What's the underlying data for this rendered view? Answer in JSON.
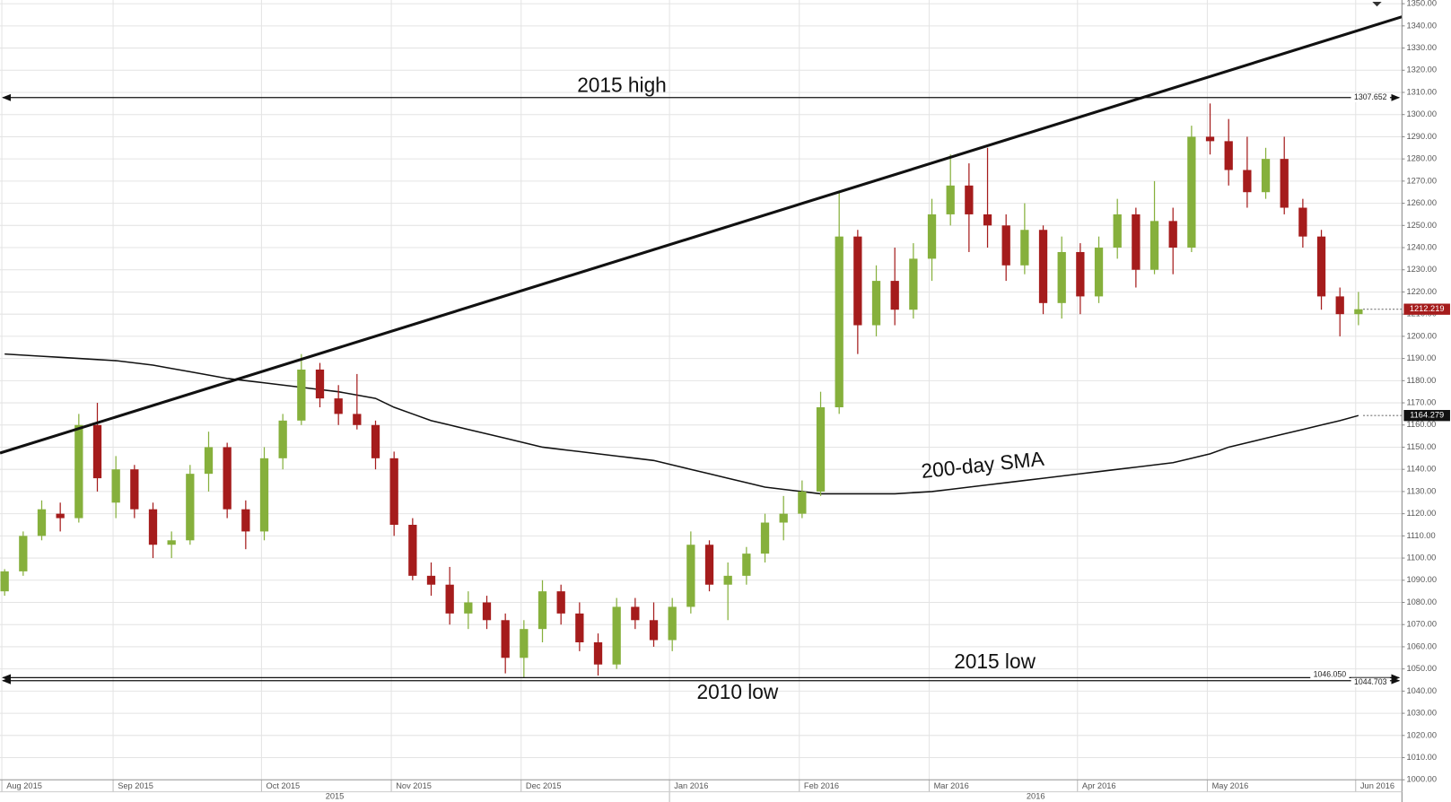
{
  "chart_data": {
    "type": "candlestick",
    "categories": [
      "Aug 2015",
      null,
      null,
      null,
      null,
      null,
      "Sep 2015",
      null,
      null,
      null,
      null,
      null,
      null,
      null,
      "Oct 2015",
      null,
      null,
      null,
      null,
      null,
      null,
      "Nov 2015",
      null,
      null,
      null,
      null,
      null,
      null,
      "Dec 2015",
      null,
      null,
      null,
      null,
      null,
      null,
      null,
      "Jan 2016",
      null,
      null,
      null,
      null,
      null,
      null,
      "Feb 2016",
      null,
      null,
      null,
      null,
      null,
      null,
      "Mar 2016",
      null,
      null,
      null,
      null,
      null,
      null,
      null,
      "Apr 2016",
      null,
      null,
      null,
      null,
      null,
      null,
      "May 2016",
      null,
      null,
      null,
      null,
      null,
      null,
      null,
      "Jun 2016"
    ],
    "year_labels": [
      "2015",
      "2016"
    ],
    "ohlc": [
      [
        1085,
        1095,
        1083,
        1094
      ],
      [
        1094,
        1112,
        1092,
        1110
      ],
      [
        1110,
        1126,
        1108,
        1122
      ],
      [
        1120,
        1125,
        1112,
        1118
      ],
      [
        1118,
        1165,
        1116,
        1160
      ],
      [
        1160,
        1170,
        1130,
        1136
      ],
      [
        1125,
        1146,
        1118,
        1140
      ],
      [
        1140,
        1142,
        1118,
        1122
      ],
      [
        1122,
        1125,
        1100,
        1106
      ],
      [
        1106,
        1112,
        1100,
        1108
      ],
      [
        1108,
        1142,
        1106,
        1138
      ],
      [
        1138,
        1157,
        1130,
        1150
      ],
      [
        1150,
        1152,
        1118,
        1122
      ],
      [
        1122,
        1126,
        1104,
        1112
      ],
      [
        1112,
        1150,
        1108,
        1145
      ],
      [
        1145,
        1165,
        1140,
        1162
      ],
      [
        1162,
        1192,
        1160,
        1185
      ],
      [
        1185,
        1188,
        1168,
        1172
      ],
      [
        1172,
        1178,
        1160,
        1165
      ],
      [
        1165,
        1183,
        1158,
        1160
      ],
      [
        1160,
        1162,
        1140,
        1145
      ],
      [
        1145,
        1148,
        1110,
        1115
      ],
      [
        1115,
        1118,
        1090,
        1092
      ],
      [
        1092,
        1098,
        1083,
        1088
      ],
      [
        1088,
        1096,
        1070,
        1075
      ],
      [
        1075,
        1085,
        1068,
        1080
      ],
      [
        1080,
        1083,
        1068,
        1072
      ],
      [
        1072,
        1075,
        1048,
        1055
      ],
      [
        1055,
        1072,
        1046,
        1068
      ],
      [
        1068,
        1090,
        1062,
        1085
      ],
      [
        1085,
        1088,
        1070,
        1075
      ],
      [
        1075,
        1080,
        1058,
        1062
      ],
      [
        1062,
        1066,
        1047,
        1052
      ],
      [
        1052,
        1082,
        1050,
        1078
      ],
      [
        1078,
        1082,
        1068,
        1072
      ],
      [
        1072,
        1080,
        1060,
        1063
      ],
      [
        1063,
        1082,
        1058,
        1078
      ],
      [
        1078,
        1112,
        1075,
        1106
      ],
      [
        1106,
        1108,
        1085,
        1088
      ],
      [
        1088,
        1098,
        1072,
        1092
      ],
      [
        1092,
        1105,
        1088,
        1102
      ],
      [
        1102,
        1120,
        1098,
        1116
      ],
      [
        1116,
        1128,
        1108,
        1120
      ],
      [
        1120,
        1135,
        1118,
        1130
      ],
      [
        1130,
        1175,
        1128,
        1168
      ],
      [
        1168,
        1265,
        1165,
        1245
      ],
      [
        1245,
        1248,
        1192,
        1205
      ],
      [
        1205,
        1232,
        1200,
        1225
      ],
      [
        1225,
        1240,
        1205,
        1212
      ],
      [
        1212,
        1242,
        1208,
        1235
      ],
      [
        1235,
        1262,
        1225,
        1255
      ],
      [
        1255,
        1282,
        1250,
        1268
      ],
      [
        1268,
        1278,
        1238,
        1255
      ],
      [
        1255,
        1285,
        1240,
        1250
      ],
      [
        1250,
        1255,
        1225,
        1232
      ],
      [
        1232,
        1260,
        1228,
        1248
      ],
      [
        1248,
        1250,
        1210,
        1215
      ],
      [
        1215,
        1245,
        1208,
        1238
      ],
      [
        1238,
        1242,
        1210,
        1218
      ],
      [
        1218,
        1245,
        1215,
        1240
      ],
      [
        1240,
        1262,
        1235,
        1255
      ],
      [
        1255,
        1258,
        1222,
        1230
      ],
      [
        1230,
        1270,
        1228,
        1252
      ],
      [
        1252,
        1258,
        1228,
        1240
      ],
      [
        1240,
        1295,
        1238,
        1290
      ],
      [
        1290,
        1305,
        1282,
        1288
      ],
      [
        1288,
        1298,
        1268,
        1275
      ],
      [
        1275,
        1290,
        1258,
        1265
      ],
      [
        1265,
        1285,
        1262,
        1280
      ],
      [
        1280,
        1290,
        1255,
        1258
      ],
      [
        1258,
        1262,
        1240,
        1245
      ],
      [
        1245,
        1248,
        1212,
        1218
      ],
      [
        1218,
        1222,
        1200,
        1210
      ],
      [
        1210,
        1220,
        1205,
        1212.219
      ]
    ],
    "up_color": "#86b03c",
    "down_color": "#a51c1c",
    "sma": {
      "name": "200-day SMA",
      "color": "#111111",
      "values": [
        1192,
        1191.5,
        1191,
        1190.5,
        1190,
        1189.5,
        1189,
        1188,
        1187,
        1185.5,
        1184,
        1182.5,
        1181,
        1180,
        1179,
        1178,
        1177,
        1176,
        1175,
        1173.5,
        1172,
        1168,
        1165,
        1162,
        1160,
        1158,
        1156,
        1154,
        1152,
        1150,
        1149,
        1148,
        1147,
        1146,
        1145,
        1144,
        1142,
        1140,
        1138,
        1136,
        1134,
        1132,
        1131,
        1130,
        1129,
        1129,
        1129,
        1129,
        1129,
        1129.5,
        1130,
        1131,
        1132,
        1133,
        1134,
        1135,
        1136,
        1137,
        1138,
        1139,
        1140,
        1141,
        1142,
        1143,
        1145,
        1147,
        1150,
        1152,
        1154,
        1156,
        1158,
        1160,
        1162,
        1164.279
      ]
    },
    "trendline": [
      1148,
      1338
    ],
    "levels": [
      {
        "name": "2015 high",
        "value": 1307.652
      },
      {
        "name": "2015 low",
        "value": 1046.05,
        "label": "1046.050"
      },
      {
        "name": "2010 low",
        "value": 1044.703
      }
    ],
    "ylim": [
      1000,
      1350
    ],
    "yticks": [
      {
        "value": 1000,
        "label": "1000.00"
      },
      {
        "value": 1010,
        "label": "1010.00"
      },
      {
        "value": 1020,
        "label": "1020.00"
      },
      {
        "value": 1030,
        "label": "1030.00"
      },
      {
        "value": 1040,
        "label": "1040.00"
      },
      {
        "value": 1050,
        "label": "1050.00"
      },
      {
        "value": 1060,
        "label": "1060.00"
      },
      {
        "value": 1070,
        "label": "1070.00"
      },
      {
        "value": 1080,
        "label": "1080.00"
      },
      {
        "value": 1090,
        "label": "1090.00"
      },
      {
        "value": 1100,
        "label": "1100.00"
      },
      {
        "value": 1110,
        "label": "1110.00"
      },
      {
        "value": 1120,
        "label": "1120.00"
      },
      {
        "value": 1130,
        "label": "1130.00"
      },
      {
        "value": 1140,
        "label": "1140.00"
      },
      {
        "value": 1150,
        "label": "1150.00"
      },
      {
        "value": 1160,
        "label": "1160.00"
      },
      {
        "value": 1170,
        "label": "1170.00"
      },
      {
        "value": 1180,
        "label": "1180.00"
      },
      {
        "value": 1190,
        "label": "1190.00"
      },
      {
        "value": 1200,
        "label": "1200.00"
      },
      {
        "value": 1210,
        "label": "1210.00"
      },
      {
        "value": 1220,
        "label": "1220.00"
      },
      {
        "value": 1230,
        "label": "1230.00"
      },
      {
        "value": 1240,
        "label": "1240.00"
      },
      {
        "value": 1250,
        "label": "1250.00"
      },
      {
        "value": 1260,
        "label": "1260.00"
      },
      {
        "value": 1270,
        "label": "1270.00"
      },
      {
        "value": 1280,
        "label": "1280.00"
      },
      {
        "value": 1290,
        "label": "1290.00"
      },
      {
        "value": 1300,
        "label": "1300.00"
      },
      {
        "value": 1310,
        "label": "1310.00"
      },
      {
        "value": 1320,
        "label": "1320.00"
      },
      {
        "value": 1330,
        "label": "1330.00"
      },
      {
        "value": 1340,
        "label": "1340.00"
      },
      {
        "value": 1350,
        "label": "1350.00"
      }
    ],
    "grid": true
  }
}
